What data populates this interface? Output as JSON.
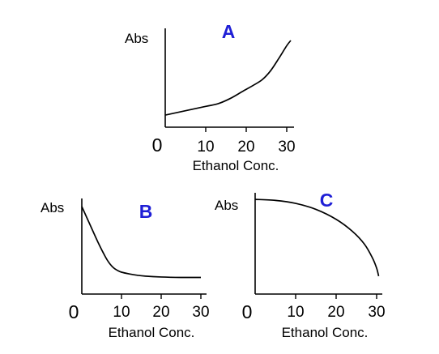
{
  "chart_data": [
    {
      "type": "line",
      "title": "A",
      "title_color": "#1f1fd6",
      "ylabel": "Abs",
      "xlabel": "Ethanol Conc.",
      "xlim": [
        0,
        31
      ],
      "ylim": [
        0,
        1
      ],
      "x_ticks": [
        10,
        20,
        30
      ],
      "origin_label": "0",
      "grid": false,
      "series": [
        {
          "x": [
            0,
            5,
            10,
            13,
            16,
            19,
            22,
            24,
            26,
            28,
            30,
            31
          ],
          "y": [
            0.14,
            0.19,
            0.24,
            0.27,
            0.33,
            0.41,
            0.49,
            0.55,
            0.65,
            0.79,
            0.94,
            1.0
          ]
        }
      ]
    },
    {
      "type": "line",
      "title": "B",
      "title_color": "#1f1fd6",
      "ylabel": "Abs",
      "xlabel": "Ethanol Conc.",
      "xlim": [
        0,
        30
      ],
      "ylim": [
        0,
        1
      ],
      "x_ticks": [
        10,
        20,
        30
      ],
      "origin_label": "0",
      "grid": false,
      "series": [
        {
          "x": [
            0,
            2,
            4,
            6,
            7,
            8,
            9,
            10,
            12,
            14,
            16,
            20,
            25,
            30
          ],
          "y": [
            1.0,
            0.8,
            0.6,
            0.42,
            0.35,
            0.3,
            0.27,
            0.25,
            0.23,
            0.215,
            0.205,
            0.195,
            0.19,
            0.19
          ]
        }
      ]
    },
    {
      "type": "line",
      "title": "C",
      "title_color": "#1f1fd6",
      "ylabel": "Abs",
      "xlabel": "Ethanol Conc.",
      "xlim": [
        0,
        31
      ],
      "ylim": [
        0,
        1
      ],
      "x_ticks": [
        10,
        20,
        30
      ],
      "origin_label": "0",
      "grid": false,
      "series": [
        {
          "x": [
            0,
            5,
            10,
            15,
            20,
            24,
            27,
            29,
            30,
            30.5
          ],
          "y": [
            0.95,
            0.94,
            0.91,
            0.85,
            0.75,
            0.63,
            0.5,
            0.36,
            0.26,
            0.18
          ]
        }
      ]
    }
  ]
}
